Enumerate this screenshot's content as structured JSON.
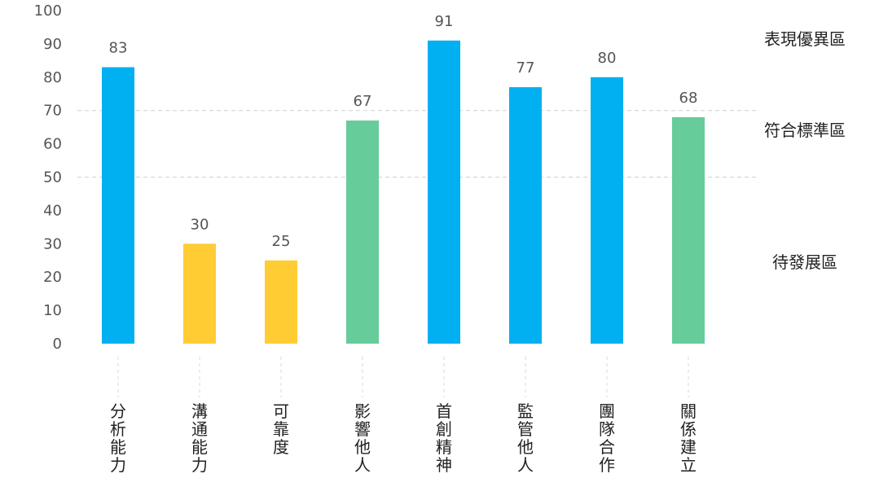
{
  "chart_data": {
    "type": "bar",
    "title": "",
    "xlabel": "",
    "ylabel": "",
    "ylim": [
      0,
      100
    ],
    "yticks": [
      0,
      10,
      20,
      30,
      40,
      50,
      60,
      70,
      80,
      90,
      100
    ],
    "grid": false,
    "legend": "none",
    "categories": [
      "分析能力",
      "溝通能力",
      "可靠度",
      "影響他人",
      "首創精神",
      "監管他人",
      "團隊合作",
      "關係建立"
    ],
    "values": [
      83,
      30,
      25,
      67,
      91,
      77,
      80,
      68
    ],
    "bar_colors": [
      "#00B0F0",
      "#FFCC33",
      "#FFCC33",
      "#66CC99",
      "#00B0F0",
      "#00B0F0",
      "#00B0F0",
      "#66CC99"
    ],
    "thresholds": [
      70,
      50
    ],
    "zones": [
      {
        "label": "表現優異區",
        "range": [
          70,
          100
        ]
      },
      {
        "label": "符合標準區",
        "range": [
          50,
          70
        ]
      },
      {
        "label": "待發展區",
        "range": [
          0,
          50
        ]
      }
    ]
  },
  "colors": {
    "excellent": "#00B0F0",
    "standard": "#66CC99",
    "developing": "#FFCC33",
    "threshold_line": "#D0D0D0",
    "category_guide": "#D9D9D9"
  }
}
